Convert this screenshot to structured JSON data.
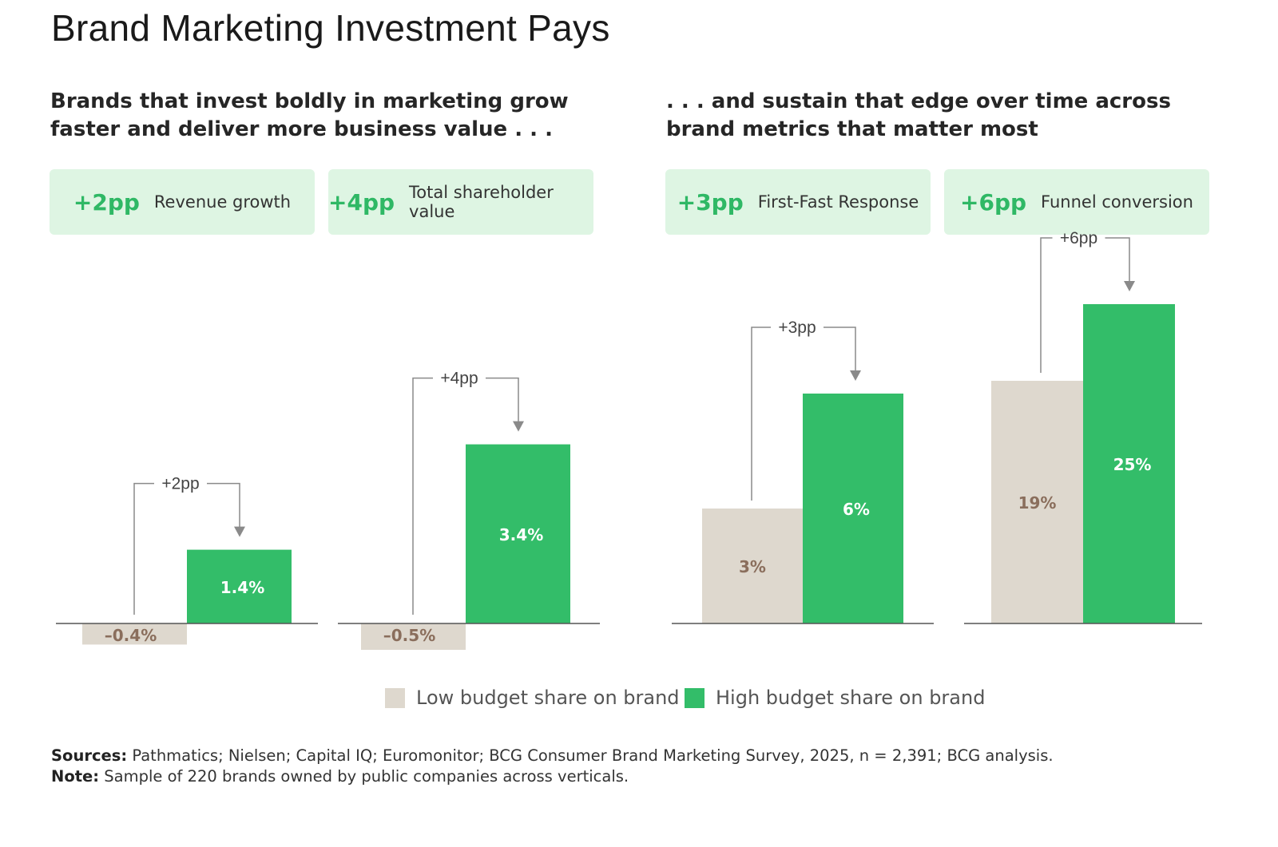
{
  "title": "Brand Marketing Investment Pays",
  "subtitles": {
    "left": "Brands that invest boldly in marketing grow faster and deliver more business value . . .",
    "right": ". . . and sustain that edge over time across brand metrics that matter most"
  },
  "colors": {
    "low": "#ded8ce",
    "high": "#33bd69",
    "pp_text": "#2fb865",
    "card_bg": "#def5e3",
    "low_label": "#8a6e5c"
  },
  "cards": [
    {
      "pp": "+2pp",
      "label": "Revenue growth"
    },
    {
      "pp": "+4pp",
      "label": "Total shareholder value"
    },
    {
      "pp": "+3pp",
      "label": "First-Fast Response"
    },
    {
      "pp": "+6pp",
      "label": "Funnel conversion"
    }
  ],
  "chart_data": [
    {
      "type": "bar",
      "title": "Revenue growth",
      "categories": [
        "Low budget share on brand",
        "High budget share on brand"
      ],
      "values": [
        -0.4,
        1.4
      ],
      "value_labels": [
        "–0.4%",
        "1.4%"
      ],
      "delta_label": "+2pp",
      "unit": "%"
    },
    {
      "type": "bar",
      "title": "Total shareholder value",
      "categories": [
        "Low budget share on brand",
        "High budget share on brand"
      ],
      "values": [
        -0.5,
        3.4
      ],
      "value_labels": [
        "–0.5%",
        "3.4%"
      ],
      "delta_label": "+4pp",
      "unit": "%"
    },
    {
      "type": "bar",
      "title": "First-Fast Response",
      "categories": [
        "Low budget share on brand",
        "High budget share on brand"
      ],
      "values": [
        3,
        6
      ],
      "value_labels": [
        "3%",
        "6%"
      ],
      "delta_label": "+3pp",
      "unit": "%"
    },
    {
      "type": "bar",
      "title": "Funnel conversion",
      "categories": [
        "Low budget share on brand",
        "High budget share on brand"
      ],
      "values": [
        19,
        25
      ],
      "value_labels": [
        "19%",
        "25%"
      ],
      "delta_label": "+6pp",
      "unit": "%"
    }
  ],
  "legend": {
    "low": "Low budget share on brand",
    "high": "High budget share on brand"
  },
  "sources": {
    "label": "Sources:",
    "text": "Pathmatics; Nielsen; Capital IQ; Euromonitor; BCG Consumer Brand Marketing Survey, 2025, n = 2,391; BCG analysis."
  },
  "note": {
    "label": "Note:",
    "text": "Sample of 220 brands owned by public companies across verticals."
  }
}
